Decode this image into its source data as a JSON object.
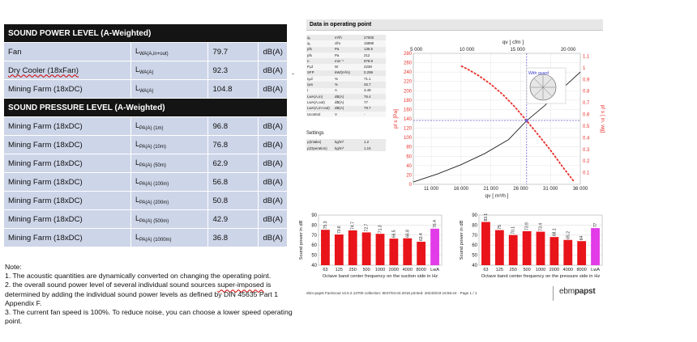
{
  "sound_table": {
    "header_power": "SOUND POWER LEVEL (A-Weighted)",
    "header_pressure": "SOUND PRESSURE LEVEL (A-Weighted)",
    "power_rows": [
      {
        "name": "Fan",
        "sym": "L",
        "sub": "WA(A,in+out)",
        "value": "79.7",
        "unit": "dB(A)"
      },
      {
        "name": "Dry Cooler (18xFan)",
        "sym": "L",
        "sub": "WA(A)",
        "value": "92.3",
        "unit": "dB(A)"
      },
      {
        "name": "Mining Farm (18xDC)",
        "sym": "L",
        "sub": "WA(A)",
        "value": "104.8",
        "unit": "dB(A)"
      }
    ],
    "pressure_rows": [
      {
        "name": "Mining Farm (18xDC)",
        "sym": "L",
        "sub": "PA(A) (1m)",
        "value": "96.8",
        "unit": "dB(A)"
      },
      {
        "name": "Mining Farm (18xDC)",
        "sym": "L",
        "sub": "PA(A) (10m)",
        "value": "76.8",
        "unit": "dB(A)"
      },
      {
        "name": "Mining Farm (18xDC)",
        "sym": "L",
        "sub": "PA(A) (50m)",
        "value": "62.9",
        "unit": "dB(A)"
      },
      {
        "name": "Mining Farm (18xDC)",
        "sym": "L",
        "sub": "PA(A) (100m)",
        "value": "56.8",
        "unit": "dB(A)"
      },
      {
        "name": "Mining Farm (18xDC)",
        "sym": "L",
        "sub": "PA(A) (200m)",
        "value": "50.8",
        "unit": "dB(A)"
      },
      {
        "name": "Mining Farm (18xDC)",
        "sym": "L",
        "sub": "PA(A) (500m)",
        "value": "42.9",
        "unit": "dB(A)"
      },
      {
        "name": "Mining Farm (18xDC)",
        "sym": "L",
        "sub": "PA(A) (1000m)",
        "value": "36.8",
        "unit": "dB(A)"
      }
    ]
  },
  "notes": {
    "heading": "Note:",
    "line1": "1. The acoustic quantities are dynamically converted on changing the operating point.",
    "line2a": "2. the overall sound power level of several individual sound sources ",
    "line2b": "super-imposed",
    "line2c": " is determined by adding the individual sound power levels as defined by DIN 45635 Part 1 Appendix F.",
    "line3": "3. The current fan speed is 100%. To reduce noise, you can choose a lower speed operating point."
  },
  "dash": "-",
  "report": {
    "title": "Data in operating point",
    "op_rows": [
      [
        "qᵥ",
        "m³/h",
        "27000"
      ],
      [
        "qᵥ",
        "cfm",
        "15890"
      ],
      [
        "pfs",
        "Pa",
        "136.5"
      ],
      [
        "pfs",
        "Pa",
        "212"
      ],
      [
        "n",
        "min⁻¹",
        "978.9"
      ],
      [
        "Pₑd",
        "W",
        "2239"
      ],
      [
        "SFP",
        "kW/(m³/s)",
        "0.299"
      ],
      [
        "ηₑd",
        "%",
        "71.1"
      ],
      [
        "ηes",
        "%",
        "45.7"
      ],
      [
        "I",
        "A",
        "3.49"
      ],
      [
        "LwA(A,in)",
        "dB(A)",
        "76.4"
      ],
      [
        "LwA(A,out)",
        "dB(A)",
        "77"
      ],
      [
        "LwA(A,in+out)",
        "dB(A)",
        "79.7"
      ],
      [
        "Ucontrol",
        "V",
        "-"
      ]
    ],
    "settings_title": "Settings",
    "settings_rows": [
      [
        "ρ(Intake)",
        "kg/m³",
        "1.2"
      ],
      [
        "ρ(Operation)",
        "kg/m³",
        "1.15"
      ]
    ],
    "footer": "ebm-papst FanScout  v3.0.2.13700 collection: 9047/04.04.2018 printed: 2024/6/19 16:55:44  ·  Page 1 / 1",
    "logo_a": "ebm",
    "logo_b": "papst"
  },
  "chart_data": [
    {
      "type": "line",
      "title": "",
      "xlabel": "qv [ m³/h ]",
      "xlabel_top": "qv [ cfm ]",
      "ylabel": "pf s [Pa]",
      "ylabel_right": "pf s [ in. wg]",
      "xlim": [
        8000,
        36000
      ],
      "ylim": [
        0,
        280
      ],
      "x_ticks": [
        11000,
        16000,
        21000,
        26000,
        31000,
        36000
      ],
      "x_tick_labels": [
        "11 000",
        "16 000",
        "21 000",
        "26 000",
        "31 000",
        "36 000"
      ],
      "x_top_ticks": [
        5000,
        10000,
        15000,
        20000
      ],
      "x_top_tick_labels": [
        "5 000",
        "10 000",
        "15 000",
        "20 000"
      ],
      "y_ticks": [
        0,
        20,
        40,
        60,
        80,
        100,
        120,
        140,
        160,
        180,
        200,
        220,
        240,
        260,
        280
      ],
      "y_right_ticks": [
        0.1,
        0.2,
        0.3,
        0.4,
        0.5,
        0.6,
        0.7,
        0.8,
        0.9,
        1,
        1.1
      ],
      "operating_point": {
        "x": 27000,
        "y": 136.5
      },
      "inset_label": "With guard",
      "series": [
        {
          "name": "",
          "color": "#222222",
          "style": "solid",
          "x": [
            8000,
            12000,
            16000,
            20000,
            24000,
            27000,
            30000,
            33000,
            36000
          ],
          "y": [
            5,
            22,
            42,
            66,
            96,
            136,
            168,
            205,
            240
          ]
        },
        {
          "name": "",
          "color": "#e8302b",
          "style": "dashed",
          "x": [
            16000,
            17000,
            19000,
            21000,
            23000,
            25000,
            27000,
            29000,
            31000,
            33000,
            35000
          ],
          "y": [
            253,
            247,
            232,
            214,
            192,
            166,
            136,
            105,
            73,
            38,
            5
          ]
        }
      ]
    },
    {
      "type": "bar",
      "title": "",
      "xlabel": "Octave band center frequency on the suction side in Hz",
      "ylabel": "Sound power in dB",
      "ylim": [
        40,
        90
      ],
      "y_ticks": [
        40,
        50,
        60,
        70,
        80,
        90
      ],
      "categories": [
        "63",
        "125",
        "250",
        "500",
        "1000",
        "2000",
        "4000",
        "8000",
        "LwA"
      ],
      "values": [
        75.3,
        70.6,
        74.7,
        72.7,
        71.3,
        66.5,
        66.8,
        63.4,
        76.4
      ],
      "colors": [
        "#e8141a",
        "#e8141a",
        "#e8141a",
        "#e8141a",
        "#e8141a",
        "#e8141a",
        "#e8141a",
        "#e8141a",
        "#e23be8"
      ]
    },
    {
      "type": "bar",
      "title": "",
      "xlabel": "Octave band center frequency on the pressure side in Hz",
      "ylabel": "Sound power in dB",
      "ylim": [
        40,
        90
      ],
      "y_ticks": [
        40,
        50,
        60,
        70,
        80,
        90
      ],
      "categories": [
        "63",
        "125",
        "250",
        "500",
        "1000",
        "2000",
        "4000",
        "8000",
        "LwA"
      ],
      "values": [
        83.1,
        75,
        70.1,
        73.9,
        73.4,
        68.1,
        65.2,
        64,
        77
      ],
      "colors": [
        "#e8141a",
        "#e8141a",
        "#e8141a",
        "#e8141a",
        "#e8141a",
        "#e8141a",
        "#e8141a",
        "#e8141a",
        "#e23be8"
      ]
    }
  ]
}
